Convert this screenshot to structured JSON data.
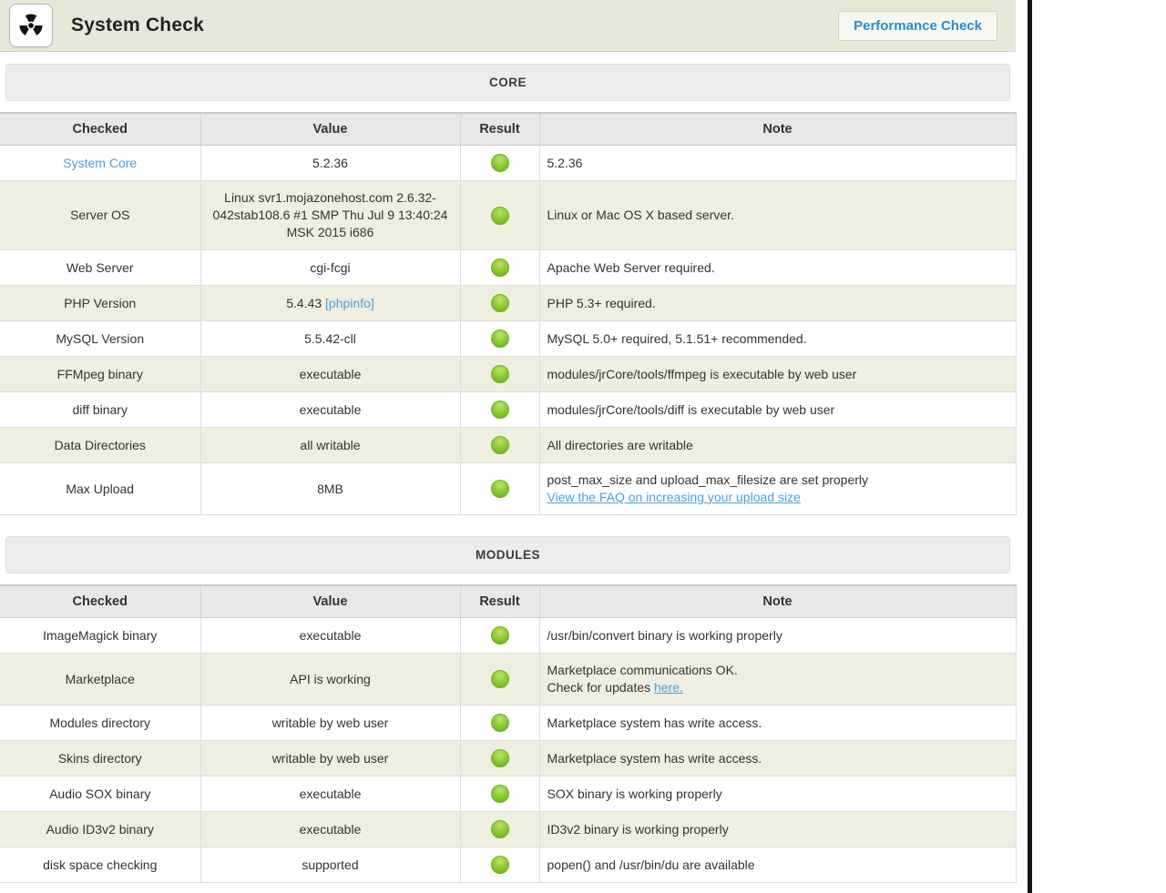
{
  "header": {
    "title": "System Check",
    "button_label": "Performance Check"
  },
  "table_columns": [
    "Checked",
    "Value",
    "Result",
    "Note"
  ],
  "sections": [
    {
      "title": "CORE",
      "rows": [
        {
          "checked": [
            {
              "text": "System Core",
              "link": true
            }
          ],
          "value": [
            {
              "text": "5.2.36"
            }
          ],
          "result": "ok",
          "note": [
            {
              "text": "5.2.36"
            }
          ]
        },
        {
          "checked": [
            {
              "text": "Server OS"
            }
          ],
          "value": [
            {
              "text": "Linux svr1.mojazonehost.com 2.6.32-042stab108.6 #1 SMP Thu Jul 9 13:40:24 MSK 2015 i686"
            }
          ],
          "result": "ok",
          "note": [
            {
              "text": "Linux or Mac OS X based server."
            }
          ]
        },
        {
          "checked": [
            {
              "text": "Web Server"
            }
          ],
          "value": [
            {
              "text": "cgi-fcgi"
            }
          ],
          "result": "ok",
          "note": [
            {
              "text": "Apache Web Server required."
            }
          ]
        },
        {
          "checked": [
            {
              "text": "PHP Version"
            }
          ],
          "value": [
            {
              "text": "5.4.43 "
            },
            {
              "text": "[phpinfo]",
              "link": true
            }
          ],
          "result": "ok",
          "note": [
            {
              "text": "PHP 5.3+ required."
            }
          ]
        },
        {
          "checked": [
            {
              "text": "MySQL Version"
            }
          ],
          "value": [
            {
              "text": "5.5.42-cll"
            }
          ],
          "result": "ok",
          "note": [
            {
              "text": "MySQL 5.0+ required, 5.1.51+ recommended."
            }
          ]
        },
        {
          "checked": [
            {
              "text": "FFMpeg binary"
            }
          ],
          "value": [
            {
              "text": "executable"
            }
          ],
          "result": "ok",
          "note": [
            {
              "text": "modules/jrCore/tools/ffmpeg is executable by web user"
            }
          ]
        },
        {
          "checked": [
            {
              "text": "diff binary"
            }
          ],
          "value": [
            {
              "text": "executable"
            }
          ],
          "result": "ok",
          "note": [
            {
              "text": "modules/jrCore/tools/diff is executable by web user"
            }
          ]
        },
        {
          "checked": [
            {
              "text": "Data Directories"
            }
          ],
          "value": [
            {
              "text": "all writable"
            }
          ],
          "result": "ok",
          "note": [
            {
              "text": "All directories are writable"
            }
          ]
        },
        {
          "checked": [
            {
              "text": "Max Upload"
            }
          ],
          "value": [
            {
              "text": "8MB"
            }
          ],
          "result": "ok",
          "note": [
            {
              "text": "post_max_size and upload_max_filesize are set properly"
            },
            {
              "text": "View the FAQ on increasing your upload size",
              "link": true,
              "underline": true,
              "br": true
            }
          ]
        }
      ]
    },
    {
      "title": "MODULES",
      "rows": [
        {
          "checked": [
            {
              "text": "ImageMagick binary"
            }
          ],
          "value": [
            {
              "text": "executable"
            }
          ],
          "result": "ok",
          "note": [
            {
              "text": "/usr/bin/convert binary is working properly"
            }
          ]
        },
        {
          "checked": [
            {
              "text": "Marketplace"
            }
          ],
          "value": [
            {
              "text": "API is working"
            }
          ],
          "result": "ok",
          "note": [
            {
              "text": "Marketplace communications OK."
            },
            {
              "text": "Check for updates ",
              "br": true
            },
            {
              "text": "here.",
              "link": true,
              "underline": true
            }
          ]
        },
        {
          "checked": [
            {
              "text": "Modules directory"
            }
          ],
          "value": [
            {
              "text": "writable by web user"
            }
          ],
          "result": "ok",
          "note": [
            {
              "text": "Marketplace system has write access."
            }
          ]
        },
        {
          "checked": [
            {
              "text": "Skins directory"
            }
          ],
          "value": [
            {
              "text": "writable by web user"
            }
          ],
          "result": "ok",
          "note": [
            {
              "text": "Marketplace system has write access."
            }
          ]
        },
        {
          "checked": [
            {
              "text": "Audio SOX binary"
            }
          ],
          "value": [
            {
              "text": "executable"
            }
          ],
          "result": "ok",
          "note": [
            {
              "text": "SOX binary is working properly"
            }
          ]
        },
        {
          "checked": [
            {
              "text": "Audio ID3v2 binary"
            }
          ],
          "value": [
            {
              "text": "executable"
            }
          ],
          "result": "ok",
          "note": [
            {
              "text": "ID3v2 binary is working properly"
            }
          ]
        },
        {
          "checked": [
            {
              "text": "disk space checking"
            }
          ],
          "value": [
            {
              "text": "supported"
            }
          ],
          "result": "ok",
          "note": [
            {
              "text": "popen() and /usr/bin/du are available"
            }
          ]
        }
      ]
    }
  ],
  "icons": {
    "header_icon": "radiation-icon",
    "result_ok_icon": "status-ok-icon"
  },
  "colors": {
    "link": "#4a9edb",
    "status_ok": "#7cbd2a",
    "header_bg": "#e8e8d8",
    "row_alt": "#efefdf",
    "divider": "#161616"
  }
}
